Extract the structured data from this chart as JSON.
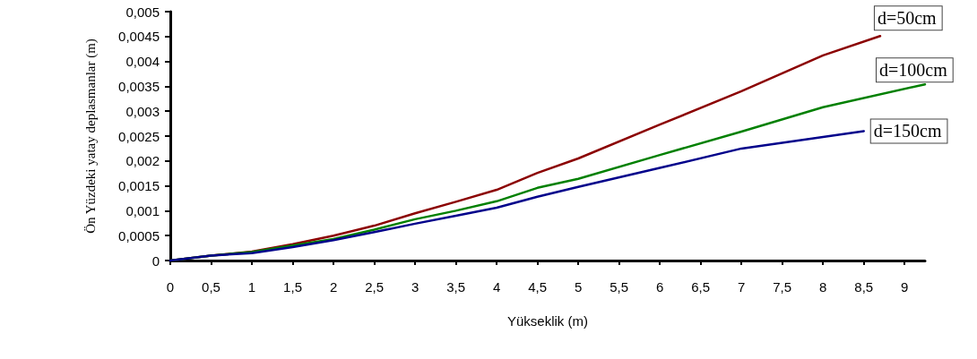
{
  "chart_data": {
    "type": "line",
    "xlabel": "Yükseklik (m)",
    "ylabel": "Ön Yüzdeki yatay deplasmanlar (m)",
    "xlim": [
      0,
      9.25
    ],
    "xticks": [
      0,
      {
        "value": 0.5,
        "label": "0,5"
      },
      1,
      {
        "value": 1.5,
        "label": "1,5"
      },
      2,
      {
        "value": 2.5,
        "label": "2,5"
      },
      3,
      {
        "value": 3.5,
        "label": "3,5"
      },
      4,
      {
        "value": 4.5,
        "label": "4,5"
      },
      5,
      {
        "value": 5.5,
        "label": "5,5"
      },
      6,
      {
        "value": 6.5,
        "label": "6,5"
      },
      7,
      {
        "value": 7.5,
        "label": "7,5"
      },
      8,
      {
        "value": 8.5,
        "label": "8,5"
      },
      9
    ],
    "ylim": [
      0,
      0.005
    ],
    "yticks": [
      0,
      {
        "value": 0.0005,
        "label": "0,0005"
      },
      {
        "value": 0.001,
        "label": "0,001"
      },
      {
        "value": 0.0015,
        "label": "0,0015"
      },
      {
        "value": 0.002,
        "label": "0,002"
      },
      {
        "value": 0.0025,
        "label": "0,0025"
      },
      {
        "value": 0.003,
        "label": "0,003"
      },
      {
        "value": 0.0035,
        "label": "0,0035"
      },
      {
        "value": 0.004,
        "label": "0,004"
      },
      {
        "value": 0.0045,
        "label": "0,0045"
      },
      {
        "value": 0.005,
        "label": "0,005"
      }
    ],
    "grid": false,
    "legend": false,
    "marker": "none",
    "line_style": "solid",
    "series": [
      {
        "name": "d=50cm",
        "color": "#8b0000",
        "x": [
          0,
          0.5,
          1,
          1.5,
          2,
          2.5,
          3,
          3.5,
          4,
          4.5,
          5,
          6,
          7,
          8,
          8.7
        ],
        "values": [
          0,
          0.0001,
          0.00018,
          0.00033,
          0.0005,
          0.0007,
          0.00095,
          0.00118,
          0.00142,
          0.00176,
          0.00205,
          0.00273,
          0.0034,
          0.00412,
          0.00451
        ]
      },
      {
        "name": "d=100cm",
        "color": "#008000",
        "x": [
          0,
          0.5,
          1,
          1.5,
          2,
          2.5,
          3,
          3.5,
          4,
          4.5,
          5,
          6,
          7,
          8,
          9.25
        ],
        "values": [
          0,
          0.0001,
          0.00017,
          0.0003,
          0.00043,
          0.00062,
          0.00083,
          0.001,
          0.00119,
          0.00146,
          0.00164,
          0.00212,
          0.00259,
          0.00308,
          0.00354
        ]
      },
      {
        "name": "d=150cm",
        "color": "#00008b",
        "x": [
          0,
          0.5,
          1,
          1.5,
          2,
          2.5,
          3,
          3.5,
          4,
          4.5,
          5,
          6,
          7,
          8,
          8.5
        ],
        "values": [
          0,
          0.0001,
          0.00015,
          0.00027,
          0.00041,
          0.00057,
          0.00074,
          0.0009,
          0.00106,
          0.00128,
          0.00148,
          0.00186,
          0.00225,
          0.00248,
          0.0026
        ]
      }
    ]
  }
}
